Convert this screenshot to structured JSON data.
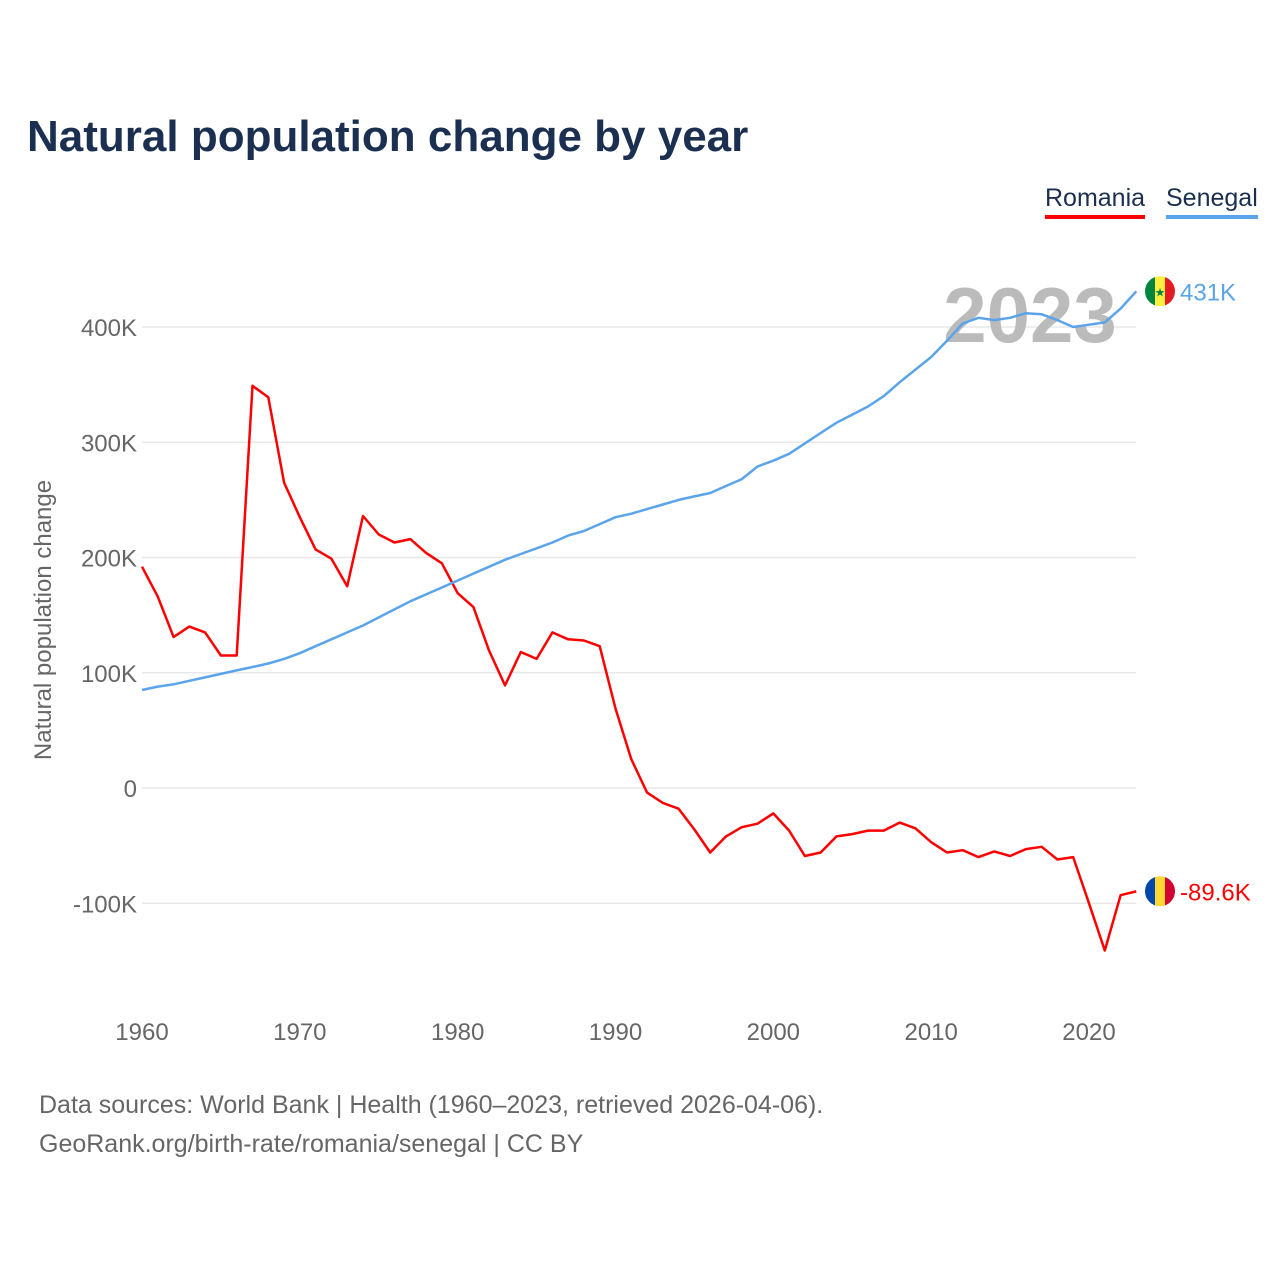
{
  "chart_data": {
    "type": "line",
    "title": "Natural population change by year",
    "ylabel": "Natural population change",
    "xlabel": "",
    "xlim": [
      1960,
      2023
    ],
    "ylim": [
      -160000,
      440000
    ],
    "xticks": [
      1960,
      1970,
      1980,
      1990,
      2000,
      2010,
      2020
    ],
    "yticks": [
      {
        "v": -100000,
        "label": "-100K"
      },
      {
        "v": 0,
        "label": "0"
      },
      {
        "v": 100000,
        "label": "100K"
      },
      {
        "v": 200000,
        "label": "200K"
      },
      {
        "v": 300000,
        "label": "300K"
      },
      {
        "v": 400000,
        "label": "400K"
      }
    ],
    "grid": true,
    "legend_placement": "top-right",
    "year_watermark": "2023",
    "x": [
      1960,
      1961,
      1962,
      1963,
      1964,
      1965,
      1966,
      1967,
      1968,
      1969,
      1970,
      1971,
      1972,
      1973,
      1974,
      1975,
      1976,
      1977,
      1978,
      1979,
      1980,
      1981,
      1982,
      1983,
      1984,
      1985,
      1986,
      1987,
      1988,
      1989,
      1990,
      1991,
      1992,
      1993,
      1994,
      1995,
      1996,
      1997,
      1998,
      1999,
      2000,
      2001,
      2002,
      2003,
      2004,
      2005,
      2006,
      2007,
      2008,
      2009,
      2010,
      2011,
      2012,
      2013,
      2014,
      2015,
      2016,
      2017,
      2018,
      2019,
      2020,
      2021,
      2022,
      2023
    ],
    "series": [
      {
        "name": "Romania",
        "color": "#ff0000",
        "end_label": "-89.6K",
        "values": [
          192000,
          166000,
          131000,
          140000,
          135000,
          115000,
          115000,
          349000,
          339000,
          265000,
          235000,
          207000,
          199000,
          175000,
          236000,
          220000,
          213000,
          216000,
          204000,
          195000,
          169000,
          157000,
          119000,
          89000,
          118000,
          112000,
          135000,
          129000,
          128000,
          123000,
          69000,
          25000,
          -4000,
          -13000,
          -18000,
          -36000,
          -56000,
          -42000,
          -34000,
          -31000,
          -22000,
          -37000,
          -59000,
          -56000,
          -42000,
          -40000,
          -37000,
          -37000,
          -30000,
          -35000,
          -47000,
          -56000,
          -54000,
          -60000,
          -55000,
          -59000,
          -53000,
          -51000,
          -62000,
          -60000,
          -100000,
          -141000,
          -93000,
          -89600
        ]
      },
      {
        "name": "Senegal",
        "color": "#5ba4ea",
        "end_label": "431K",
        "values": [
          85000,
          88000,
          90000,
          93000,
          96000,
          99000,
          102000,
          105000,
          108000,
          112000,
          117000,
          123000,
          129000,
          135000,
          141000,
          148000,
          155000,
          162000,
          168000,
          174000,
          180000,
          186000,
          192000,
          198000,
          203000,
          208000,
          213000,
          219000,
          223000,
          229000,
          235000,
          238000,
          242000,
          246000,
          250000,
          253000,
          256000,
          262000,
          268000,
          279000,
          284000,
          290000,
          299000,
          308000,
          317000,
          324000,
          331000,
          340000,
          352000,
          363000,
          374000,
          388000,
          403000,
          408000,
          406000,
          408000,
          412000,
          411000,
          406000,
          400000,
          402000,
          404000,
          416000,
          431000
        ]
      }
    ]
  },
  "footer": {
    "line1": "Data sources: World Bank | Health (1960–2023, retrieved 2026-04-06).",
    "line2": "GeoRank.org/birth-rate/romania/senegal | CC BY"
  }
}
